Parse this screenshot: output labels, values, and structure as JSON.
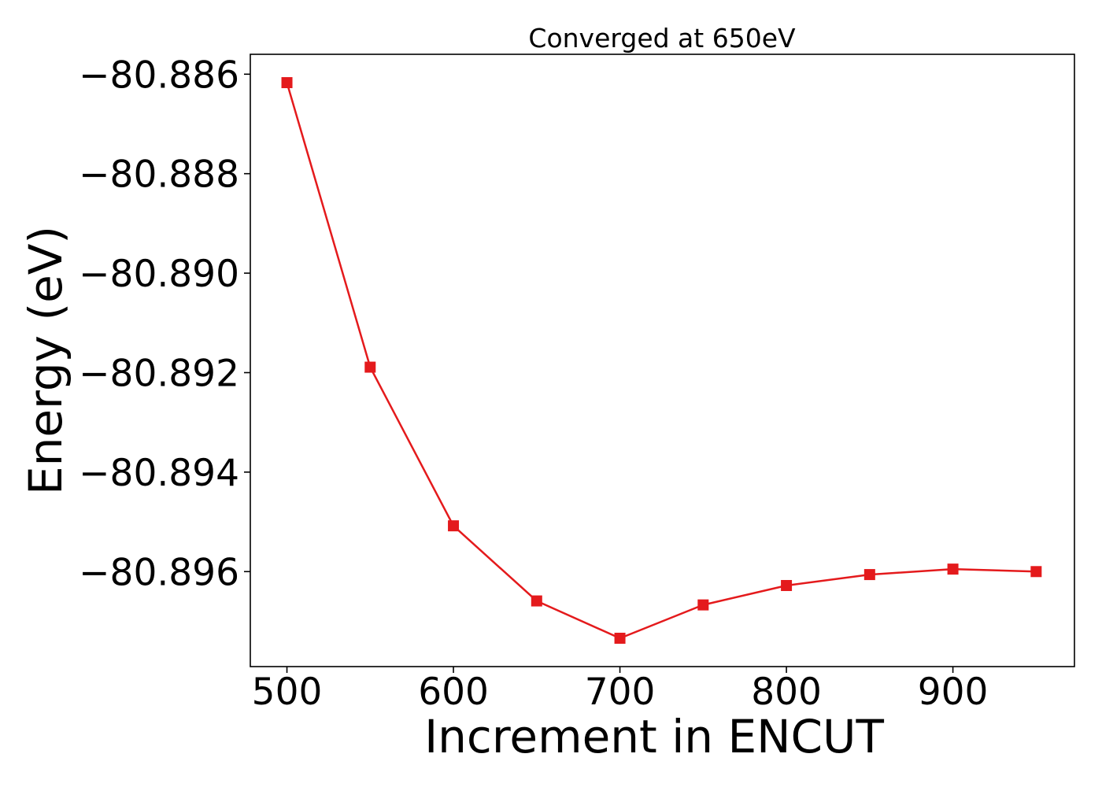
{
  "chart_data": {
    "type": "line",
    "title": "Converged at 650eV",
    "xlabel": "Increment in ENCUT",
    "ylabel": "Energy (eV)",
    "x": [
      500,
      550,
      600,
      650,
      700,
      750,
      800,
      850,
      900,
      950
    ],
    "series": [
      {
        "values": [
          -80.88617,
          -80.89189,
          -80.89508,
          -80.89659,
          -80.89734,
          -80.89667,
          -80.89628,
          -80.89606,
          -80.89595,
          -80.896
        ],
        "color": "#e41a1c",
        "marker": "square"
      }
    ],
    "xlim": [
      478,
      973
    ],
    "ylim": [
      -80.89791,
      -80.8856
    ],
    "x_ticks": [
      500,
      600,
      700,
      800,
      900
    ],
    "x_tick_labels": [
      "500",
      "600",
      "700",
      "800",
      "900"
    ],
    "y_ticks": [
      -80.886,
      -80.888,
      -80.89,
      -80.892,
      -80.894,
      -80.896
    ],
    "y_tick_labels": [
      "−80.886",
      "−80.888",
      "−80.890",
      "−80.892",
      "−80.894",
      "−80.896"
    ],
    "grid": false,
    "legend": "none"
  }
}
